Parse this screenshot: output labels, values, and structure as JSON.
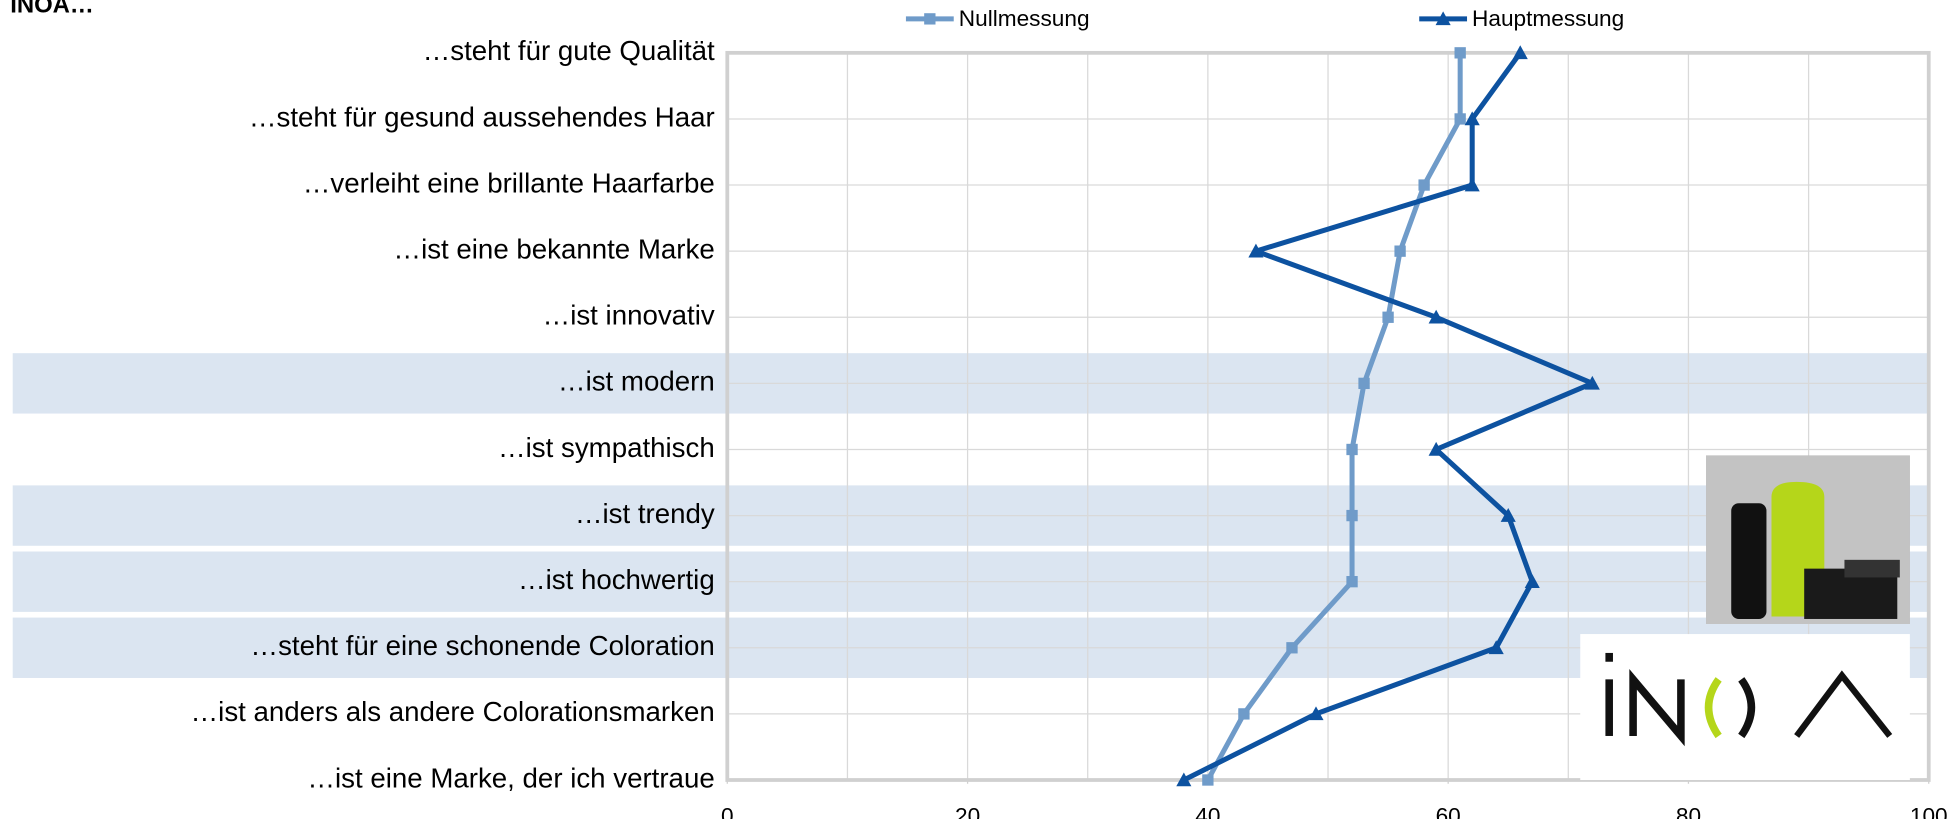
{
  "chart_data": {
    "type": "line",
    "title": "INOA…",
    "categories": [
      "…steht für gute Qualität",
      "…steht für gesund aussehendes Haar",
      "…verleiht eine brillante Haarfarbe",
      "…ist eine bekannte Marke",
      "…ist innovativ",
      "…ist modern",
      "…ist sympathisch",
      "…ist trendy",
      "…ist hochwertig",
      "…steht für eine schonende Coloration",
      "…ist anders als andere Colorationsmarken",
      "…ist eine Marke, der ich vertraue"
    ],
    "series": [
      {
        "name": "Nullmessung",
        "color": "#6f9bc9",
        "marker": "square",
        "values": [
          61,
          61,
          58,
          56,
          55,
          53,
          52,
          52,
          52,
          47,
          43,
          40
        ]
      },
      {
        "name": "Hauptmessung",
        "color": "#0d52a0",
        "marker": "triangle",
        "values": [
          66,
          62,
          62,
          44,
          59,
          72,
          59,
          65,
          67,
          64,
          49,
          38
        ]
      }
    ],
    "xlim": [
      0,
      100
    ],
    "xticks": [
      0,
      20,
      40,
      60,
      80,
      100
    ],
    "xgrid": [
      10,
      20,
      30,
      40,
      50,
      60,
      70,
      80,
      90
    ],
    "grid": true,
    "legend": "top"
  }
}
